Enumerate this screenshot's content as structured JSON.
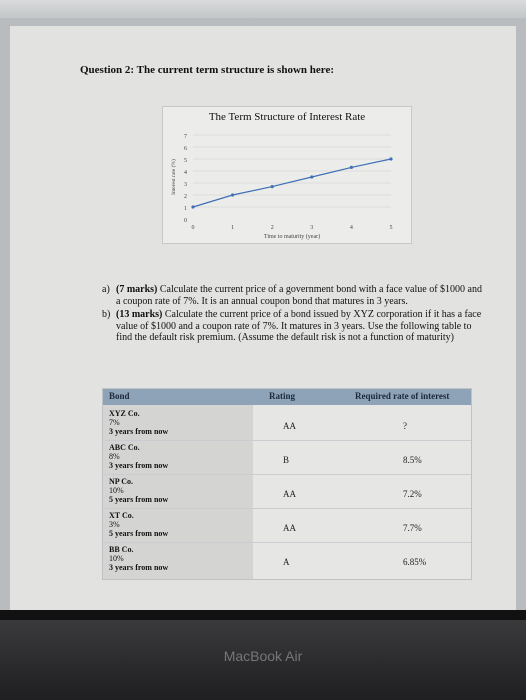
{
  "question_title": "Question 2: The current term structure is shown here:",
  "chart_data": {
    "type": "line",
    "title": "The Term Structure of Interest Rate",
    "xlabel": "Time to maturity (year)",
    "ylabel": "Interest rate (%)",
    "x": [
      0,
      1,
      2,
      3,
      4,
      5
    ],
    "y": [
      1,
      2,
      2.7,
      3.5,
      4.3,
      5
    ],
    "x_ticks": [
      "0",
      "1",
      "2",
      "3",
      "4",
      "5"
    ],
    "y_ticks": [
      "0",
      "1",
      "2",
      "3",
      "4",
      "5",
      "6",
      "7"
    ],
    "ylim": [
      0,
      7
    ],
    "grid": true,
    "line_color": "#3f6fb5"
  },
  "questions": [
    {
      "label": "a)",
      "marks": "(7 marks)",
      "text": "Calculate the current price of a government bond with a face value of $1000 and a coupon rate of 7%. It is an annual coupon bond that matures in 3 years."
    },
    {
      "label": "b)",
      "marks": "(13 marks)",
      "text": "Calculate the current price of a bond issued by XYZ corporation if it has a face value of $1000 and a coupon rate of 7%. It matures in 3 years. Use the following table to find the default risk premium. (Assume the default risk is not a function of maturity)"
    }
  ],
  "table": {
    "headers": [
      "Bond",
      "Rating",
      "Required rate of interest"
    ],
    "rows": [
      {
        "name": "XYZ Co.",
        "coupon": "7%",
        "maturity": "3 years from now",
        "rating": "AA",
        "rate": "?"
      },
      {
        "name": "ABC Co.",
        "coupon": "8%",
        "maturity": "3 years from now",
        "rating": "B",
        "rate": "8.5%"
      },
      {
        "name": "NP Co.",
        "coupon": "10%",
        "maturity": "5 years from now",
        "rating": "AA",
        "rate": "7.2%"
      },
      {
        "name": "XT Co.",
        "coupon": "3%",
        "maturity": "5 years from now",
        "rating": "AA",
        "rate": "7.7%"
      },
      {
        "name": "BB Co.",
        "coupon": "10%",
        "maturity": "3 years from now",
        "rating": "A",
        "rate": "6.85%"
      }
    ]
  },
  "laptop_label": "MacBook Air"
}
